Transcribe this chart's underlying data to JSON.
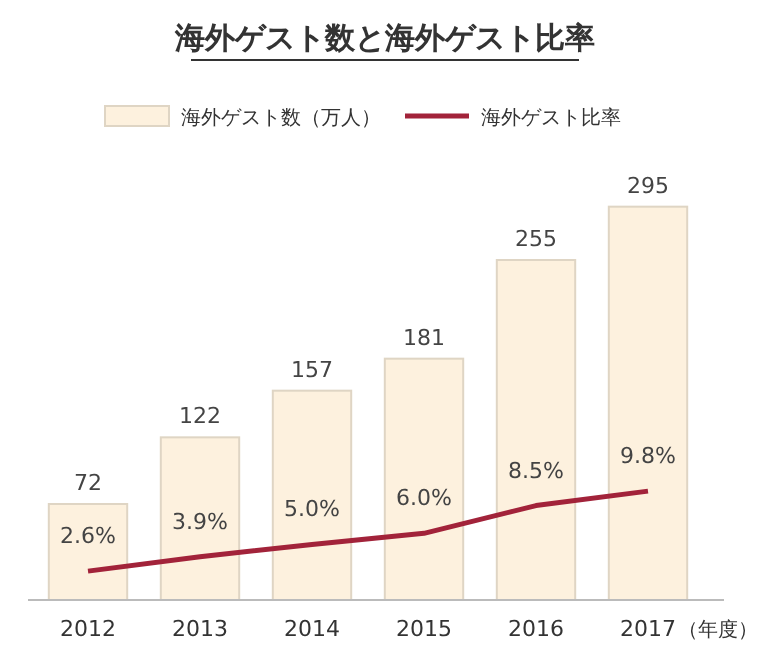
{
  "chart_data": {
    "type": "bar",
    "title": "海外ゲスト数と海外ゲスト比率",
    "xlabel": "（年度）",
    "categories": [
      "2012",
      "2013",
      "2014",
      "2015",
      "2016",
      "2017"
    ],
    "ylim": [
      0,
      300
    ],
    "y2lim": [
      0,
      36
    ],
    "legend": "top",
    "series": [
      {
        "name": "海外ゲスト数（万人）",
        "color": "#fdf1de",
        "values": [
          72,
          122,
          157,
          181,
          255,
          295
        ],
        "value_labels": [
          "72",
          "122",
          "157",
          "181",
          "255",
          "295"
        ]
      },
      {
        "name": "海外ゲスト比率",
        "type": "line",
        "axis": "y2",
        "color": "#a2233a",
        "values": [
          2.6,
          3.9,
          5.0,
          6.0,
          8.5,
          9.8
        ],
        "value_labels": [
          "2.6%",
          "3.9%",
          "5.0%",
          "6.0%",
          "8.5%",
          "9.8%"
        ]
      }
    ]
  }
}
